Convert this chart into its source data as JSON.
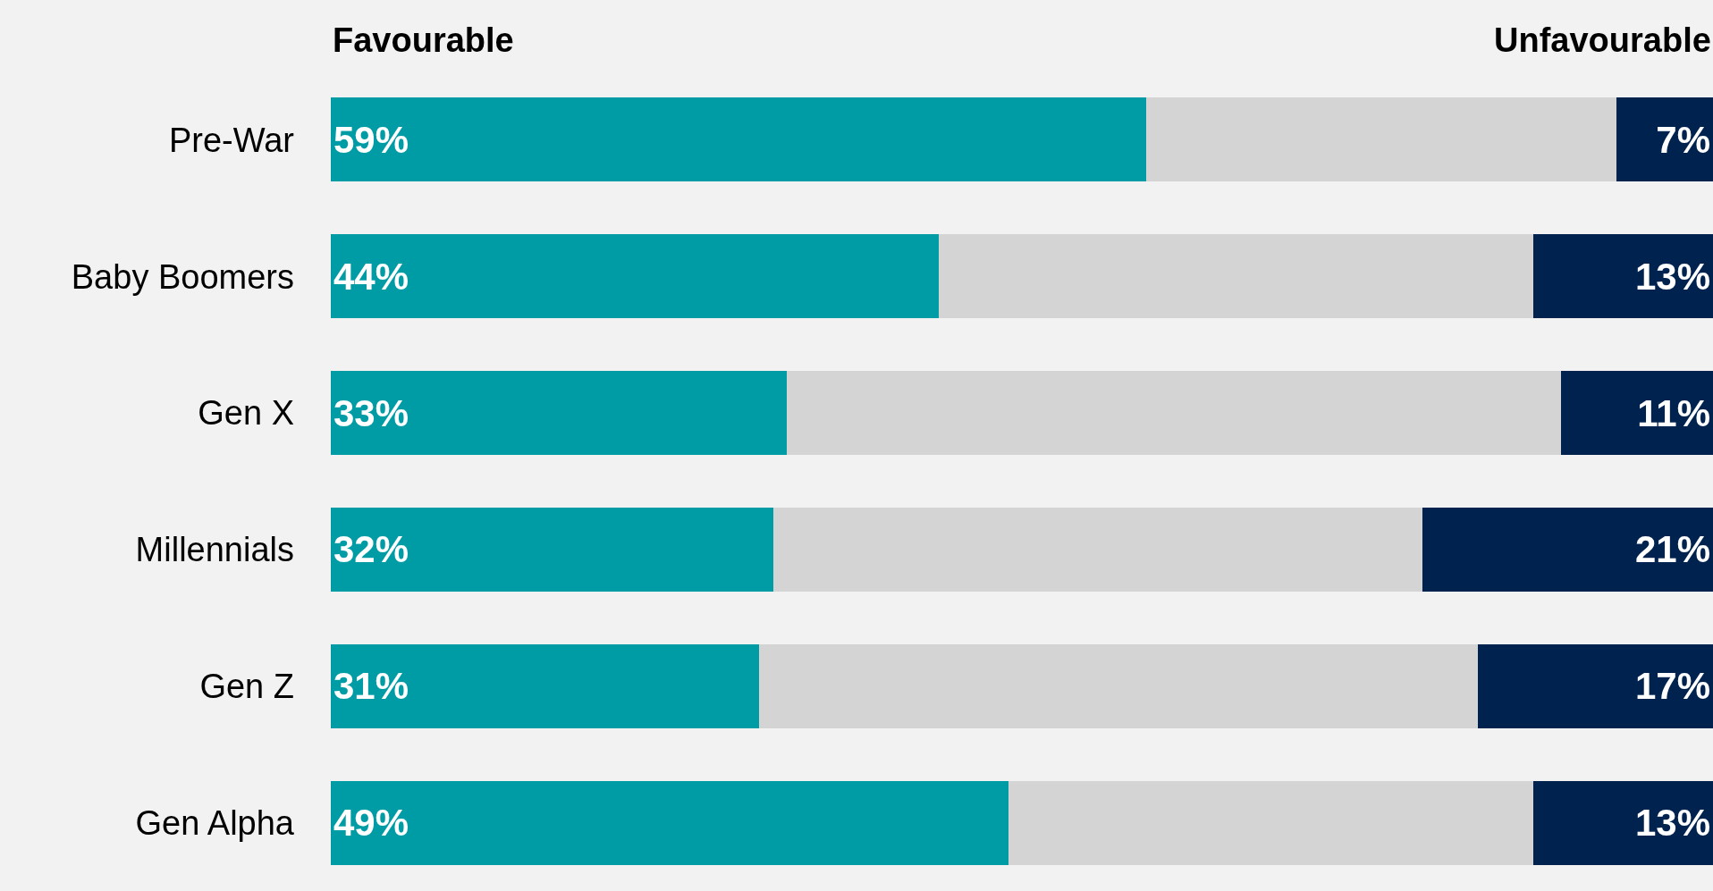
{
  "chart_data": {
    "type": "bar",
    "orientation": "horizontal",
    "stacked": true,
    "categories": [
      "Pre-War",
      "Baby Boomers",
      "Gen X",
      "Millennials",
      "Gen Z",
      "Gen Alpha"
    ],
    "series": [
      {
        "name": "Favourable",
        "color": "#009ca6",
        "values": [
          59,
          44,
          33,
          32,
          31,
          49
        ],
        "value_labels": [
          "59%",
          "44%",
          "33%",
          "32%",
          "31%",
          "49%"
        ]
      },
      {
        "color": "#d4d4d4",
        "values": [
          34,
          43,
          56,
          47,
          52,
          38
        ]
      },
      {
        "name": "Unfavourable",
        "color": "#00224e",
        "values": [
          7,
          13,
          11,
          21,
          17,
          13
        ],
        "value_labels": [
          "7%",
          "13%",
          "11%",
          "21%",
          "17%",
          "13%"
        ]
      }
    ],
    "xlim": [
      0,
      100
    ],
    "tick_labels": "y",
    "grid": false,
    "legend": false
  }
}
